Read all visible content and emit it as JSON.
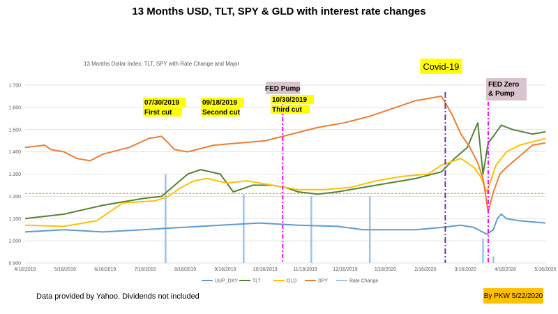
{
  "page": {
    "title": "13 Months USD, TLT, SPY & GLD with interest rate changes",
    "footer_note": "Data provided by Yahoo.  Dividends not included",
    "author_note": "By PKW 5/22/2020"
  },
  "chart_data": {
    "type": "line",
    "title": "13  Months Dollar Index, TLT, SPY with Rate Change and Major",
    "x_tick_labels": [
      "4/16/2019",
      "5/16/2019",
      "6/16/2019",
      "7/16/2019",
      "8/16/2019",
      "9/16/2019",
      "10/16/2019",
      "11/16/2019",
      "12/16/2019",
      "1/16/2020",
      "2/16/2020",
      "3/16/2020",
      "4/16/2020",
      "5/16/2020"
    ],
    "x_range_days": [
      0,
      400
    ],
    "y_tick_labels": [
      "0.900",
      "1.000",
      "1.100",
      "1.200",
      "1.300",
      "1.400",
      "1.500",
      "1.600",
      "1.700"
    ],
    "ylim": [
      0.9,
      1.7
    ],
    "grid": "horizontal",
    "legend_position": "bottom",
    "reference_line": {
      "y": 1.213,
      "color": "#c9a100"
    },
    "series": [
      {
        "name": "UUP_DXY",
        "color": "#5b9bd5",
        "points": [
          [
            0,
            1.04
          ],
          [
            30,
            1.05
          ],
          [
            60,
            1.04
          ],
          [
            90,
            1.05
          ],
          [
            120,
            1.06
          ],
          [
            150,
            1.07
          ],
          [
            180,
            1.08
          ],
          [
            210,
            1.07
          ],
          [
            240,
            1.065
          ],
          [
            260,
            1.05
          ],
          [
            300,
            1.05
          ],
          [
            320,
            1.06
          ],
          [
            335,
            1.07
          ],
          [
            345,
            1.06
          ],
          [
            355,
            1.03
          ],
          [
            360,
            1.05
          ],
          [
            363,
            1.1
          ],
          [
            366,
            1.12
          ],
          [
            370,
            1.1
          ],
          [
            380,
            1.09
          ],
          [
            400,
            1.08
          ]
        ]
      },
      {
        "name": "TLT",
        "color": "#548235",
        "points": [
          [
            0,
            1.1
          ],
          [
            30,
            1.12
          ],
          [
            60,
            1.16
          ],
          [
            90,
            1.19
          ],
          [
            105,
            1.2
          ],
          [
            115,
            1.25
          ],
          [
            125,
            1.3
          ],
          [
            135,
            1.32
          ],
          [
            150,
            1.3
          ],
          [
            160,
            1.22
          ],
          [
            175,
            1.25
          ],
          [
            190,
            1.25
          ],
          [
            200,
            1.24
          ],
          [
            210,
            1.22
          ],
          [
            225,
            1.21
          ],
          [
            240,
            1.22
          ],
          [
            270,
            1.25
          ],
          [
            300,
            1.28
          ],
          [
            320,
            1.31
          ],
          [
            330,
            1.37
          ],
          [
            340,
            1.42
          ],
          [
            345,
            1.49
          ],
          [
            348,
            1.53
          ],
          [
            352,
            1.3
          ],
          [
            356,
            1.44
          ],
          [
            360,
            1.47
          ],
          [
            366,
            1.52
          ],
          [
            375,
            1.5
          ],
          [
            390,
            1.48
          ],
          [
            400,
            1.49
          ]
        ]
      },
      {
        "name": "GLD",
        "color": "#ffc000",
        "points": [
          [
            0,
            1.07
          ],
          [
            30,
            1.065
          ],
          [
            55,
            1.09
          ],
          [
            75,
            1.17
          ],
          [
            100,
            1.18
          ],
          [
            110,
            1.2
          ],
          [
            120,
            1.24
          ],
          [
            130,
            1.27
          ],
          [
            140,
            1.28
          ],
          [
            155,
            1.26
          ],
          [
            170,
            1.27
          ],
          [
            190,
            1.25
          ],
          [
            210,
            1.23
          ],
          [
            230,
            1.23
          ],
          [
            250,
            1.24
          ],
          [
            270,
            1.27
          ],
          [
            290,
            1.29
          ],
          [
            310,
            1.3
          ],
          [
            320,
            1.34
          ],
          [
            335,
            1.37
          ],
          [
            345,
            1.33
          ],
          [
            350,
            1.29
          ],
          [
            355,
            1.22
          ],
          [
            362,
            1.34
          ],
          [
            370,
            1.4
          ],
          [
            380,
            1.43
          ],
          [
            400,
            1.46
          ]
        ]
      },
      {
        "name": "SPY",
        "color": "#ed7d31",
        "points": [
          [
            0,
            1.42
          ],
          [
            15,
            1.43
          ],
          [
            20,
            1.41
          ],
          [
            30,
            1.4
          ],
          [
            40,
            1.37
          ],
          [
            50,
            1.36
          ],
          [
            60,
            1.39
          ],
          [
            80,
            1.42
          ],
          [
            95,
            1.46
          ],
          [
            105,
            1.47
          ],
          [
            115,
            1.41
          ],
          [
            125,
            1.4
          ],
          [
            145,
            1.43
          ],
          [
            165,
            1.44
          ],
          [
            185,
            1.45
          ],
          [
            205,
            1.48
          ],
          [
            225,
            1.51
          ],
          [
            245,
            1.53
          ],
          [
            265,
            1.56
          ],
          [
            285,
            1.6
          ],
          [
            300,
            1.63
          ],
          [
            310,
            1.64
          ],
          [
            320,
            1.65
          ],
          [
            328,
            1.57
          ],
          [
            335,
            1.48
          ],
          [
            342,
            1.42
          ],
          [
            348,
            1.35
          ],
          [
            352,
            1.28
          ],
          [
            356,
            1.13
          ],
          [
            360,
            1.22
          ],
          [
            365,
            1.3
          ],
          [
            370,
            1.33
          ],
          [
            380,
            1.38
          ],
          [
            390,
            1.43
          ],
          [
            400,
            1.44
          ]
        ]
      },
      {
        "name": "Rate Change",
        "color": "#9dc3e6",
        "spikes": [
          [
            108,
            1.3
          ],
          [
            168,
            1.21
          ],
          [
            220,
            1.2
          ],
          [
            265,
            1.2
          ],
          [
            352,
            1.01
          ],
          [
            360,
            0.93
          ]
        ]
      }
    ],
    "vertical_markers": [
      {
        "label": "FED Pump",
        "day": 198,
        "color": "#ff00ff"
      },
      {
        "label": "Covid-19",
        "day": 323,
        "color": "#7030a0"
      },
      {
        "label": "FED Zero & Pump",
        "day": 356,
        "color": "#ff00ff"
      }
    ],
    "annotations": [
      {
        "date": "07/30/2019",
        "text": "First cut"
      },
      {
        "date": "09/18/2019",
        "text": "Second cut"
      },
      {
        "date": "10/30/2019",
        "text": "Third cut"
      }
    ]
  }
}
